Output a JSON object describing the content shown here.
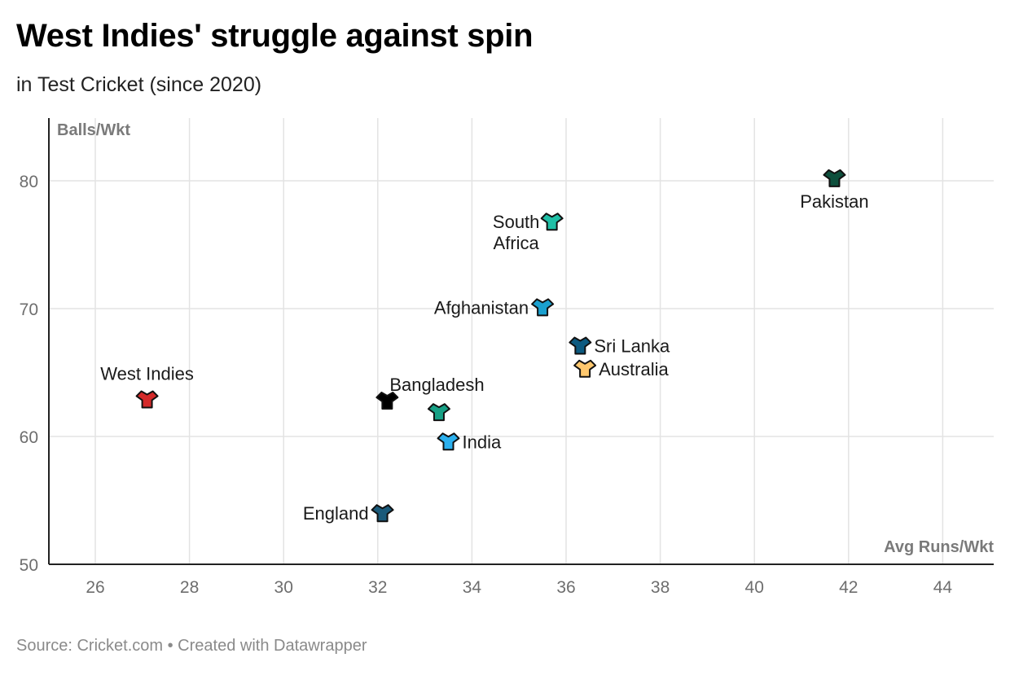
{
  "header": {
    "title": "West Indies' struggle against spin",
    "subtitle": "in Test Cricket (since 2020)"
  },
  "footer": {
    "source": "Source: Cricket.com • Created with Datawrapper"
  },
  "chart_data": {
    "type": "scatter",
    "title": "West Indies' struggle against spin",
    "subtitle": "in Test Cricket (since 2020)",
    "xlabel": "Avg Runs/Wkt",
    "ylabel": "Balls/Wkt",
    "xlim": [
      25,
      45
    ],
    "ylim": [
      50,
      85
    ],
    "x_ticks": [
      26,
      28,
      30,
      32,
      34,
      36,
      38,
      40,
      42,
      44
    ],
    "y_ticks": [
      50,
      60,
      70,
      80
    ],
    "grid": true,
    "points": [
      {
        "name": "Pakistan",
        "label_lines": [
          "Pakistan"
        ],
        "x": 41.7,
        "y": 80.2,
        "color": "#0d4f3c",
        "label_pos": "below"
      },
      {
        "name": "South Africa",
        "label_lines": [
          "South",
          "Africa"
        ],
        "x": 35.7,
        "y": 76.8,
        "color": "#1fbfa6",
        "label_pos": "left"
      },
      {
        "name": "Afghanistan",
        "label_lines": [
          "Afghanistan"
        ],
        "x": 35.5,
        "y": 70.1,
        "color": "#1aa0cf",
        "label_pos": "left"
      },
      {
        "name": "Sri Lanka",
        "label_lines": [
          "Sri Lanka"
        ],
        "x": 36.3,
        "y": 67.1,
        "color": "#0d5a80",
        "label_pos": "right"
      },
      {
        "name": "Australia",
        "label_lines": [
          "Australia"
        ],
        "x": 36.4,
        "y": 65.3,
        "color": "#ffc86e",
        "label_pos": "right"
      },
      {
        "name": "West Indies",
        "label_lines": [
          "West Indies"
        ],
        "x": 27.1,
        "y": 62.9,
        "color": "#d42a2a",
        "label_pos": "above"
      },
      {
        "name": "Bangladesh",
        "label_lines": [
          "Bangladesh"
        ],
        "x": 32.2,
        "y": 62.8,
        "color": "#000000",
        "label_pos": "above-right"
      },
      {
        "name": "Bangladesh-2",
        "label_lines": [],
        "x": 33.3,
        "y": 61.9,
        "color": "#17a085",
        "label_pos": "none"
      },
      {
        "name": "India",
        "label_lines": [
          "India"
        ],
        "x": 33.5,
        "y": 59.6,
        "color": "#2bb0ee",
        "label_pos": "right"
      },
      {
        "name": "England",
        "label_lines": [
          "England"
        ],
        "x": 32.1,
        "y": 54.0,
        "color": "#1a5a7a",
        "label_pos": "left"
      }
    ]
  }
}
